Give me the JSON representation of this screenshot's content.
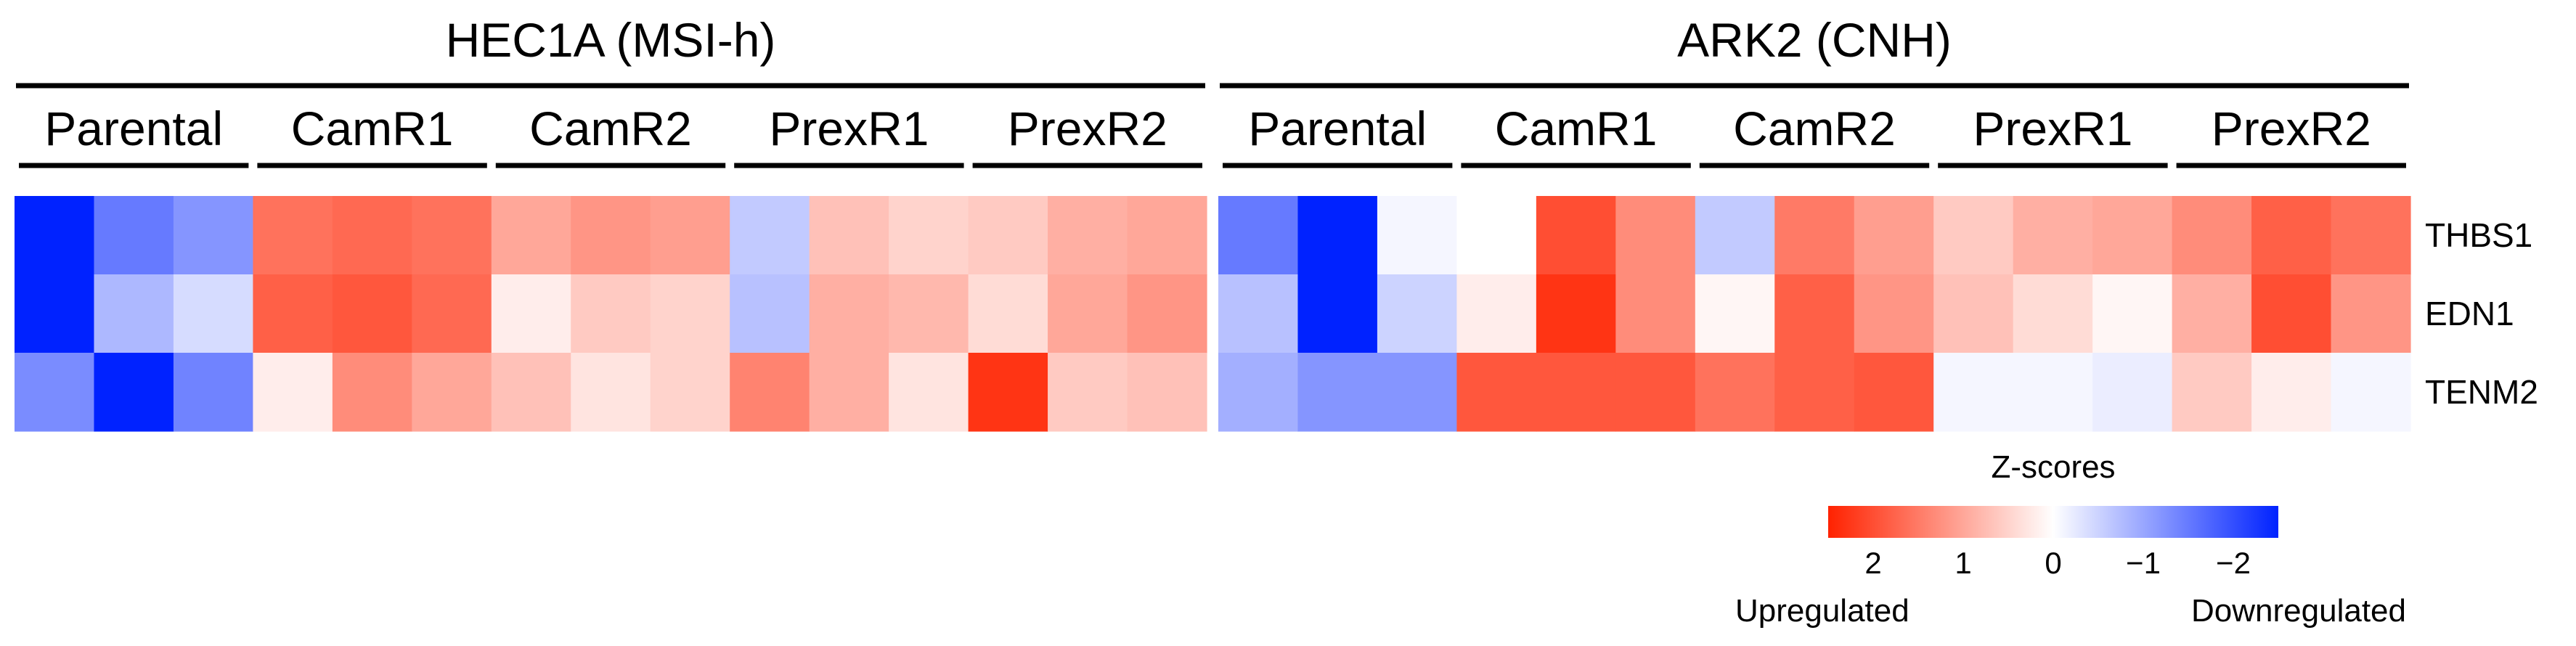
{
  "chart_data": {
    "type": "heatmap",
    "panels": [
      {
        "title": "HEC1A (MSI-h)",
        "groups": [
          "Parental",
          "CamR1",
          "CamR2",
          "PrexR1",
          "PrexR2"
        ],
        "rows": [
          "THBS1",
          "EDN1",
          "TENM2"
        ],
        "values": [
          [
            -2.6,
            -1.5,
            -1.2,
            1.6,
            1.7,
            1.6,
            1.0,
            1.2,
            1.1,
            -0.6,
            0.7,
            0.5,
            0.6,
            0.9,
            1.0
          ],
          [
            -2.9,
            -0.8,
            -0.4,
            1.8,
            1.9,
            1.7,
            0.2,
            0.6,
            0.5,
            -0.7,
            0.9,
            0.8,
            0.4,
            1.0,
            1.2
          ],
          [
            -1.3,
            -2.5,
            -1.4,
            0.2,
            1.3,
            1.0,
            0.7,
            0.3,
            0.5,
            1.4,
            0.9,
            0.3,
            2.3,
            0.6,
            0.7
          ]
        ]
      },
      {
        "title": "ARK2 (CNH)",
        "groups": [
          "Parental",
          "CamR1",
          "CamR2",
          "PrexR1",
          "PrexR2"
        ],
        "rows": [
          "THBS1",
          "EDN1",
          "TENM2"
        ],
        "values": [
          [
            -1.5,
            -3.0,
            -0.1,
            0.0,
            2.0,
            1.3,
            -0.6,
            1.5,
            1.1,
            0.6,
            0.9,
            1.0,
            1.3,
            1.8,
            1.6
          ],
          [
            -0.7,
            -3.0,
            -0.5,
            0.2,
            2.3,
            1.3,
            0.1,
            1.8,
            1.2,
            0.7,
            0.4,
            0.1,
            0.9,
            2.0,
            1.2
          ],
          [
            -0.9,
            -1.2,
            -1.2,
            1.9,
            1.9,
            1.9,
            1.6,
            1.8,
            1.9,
            -0.1,
            -0.1,
            -0.2,
            0.6,
            0.2,
            -0.1
          ]
        ]
      }
    ],
    "colorbar": {
      "title": "Z-scores",
      "ticks": [
        "2",
        "1",
        "0",
        "−1",
        "−2"
      ],
      "tick_values": [
        2,
        1,
        0,
        -1,
        -2
      ],
      "range": [
        2.5,
        -2.5
      ],
      "left_label": "Upregulated",
      "right_label": "Downregulated",
      "colors": {
        "high": "#ff2200",
        "mid": "#ffffff",
        "low": "#0022ff"
      }
    }
  }
}
